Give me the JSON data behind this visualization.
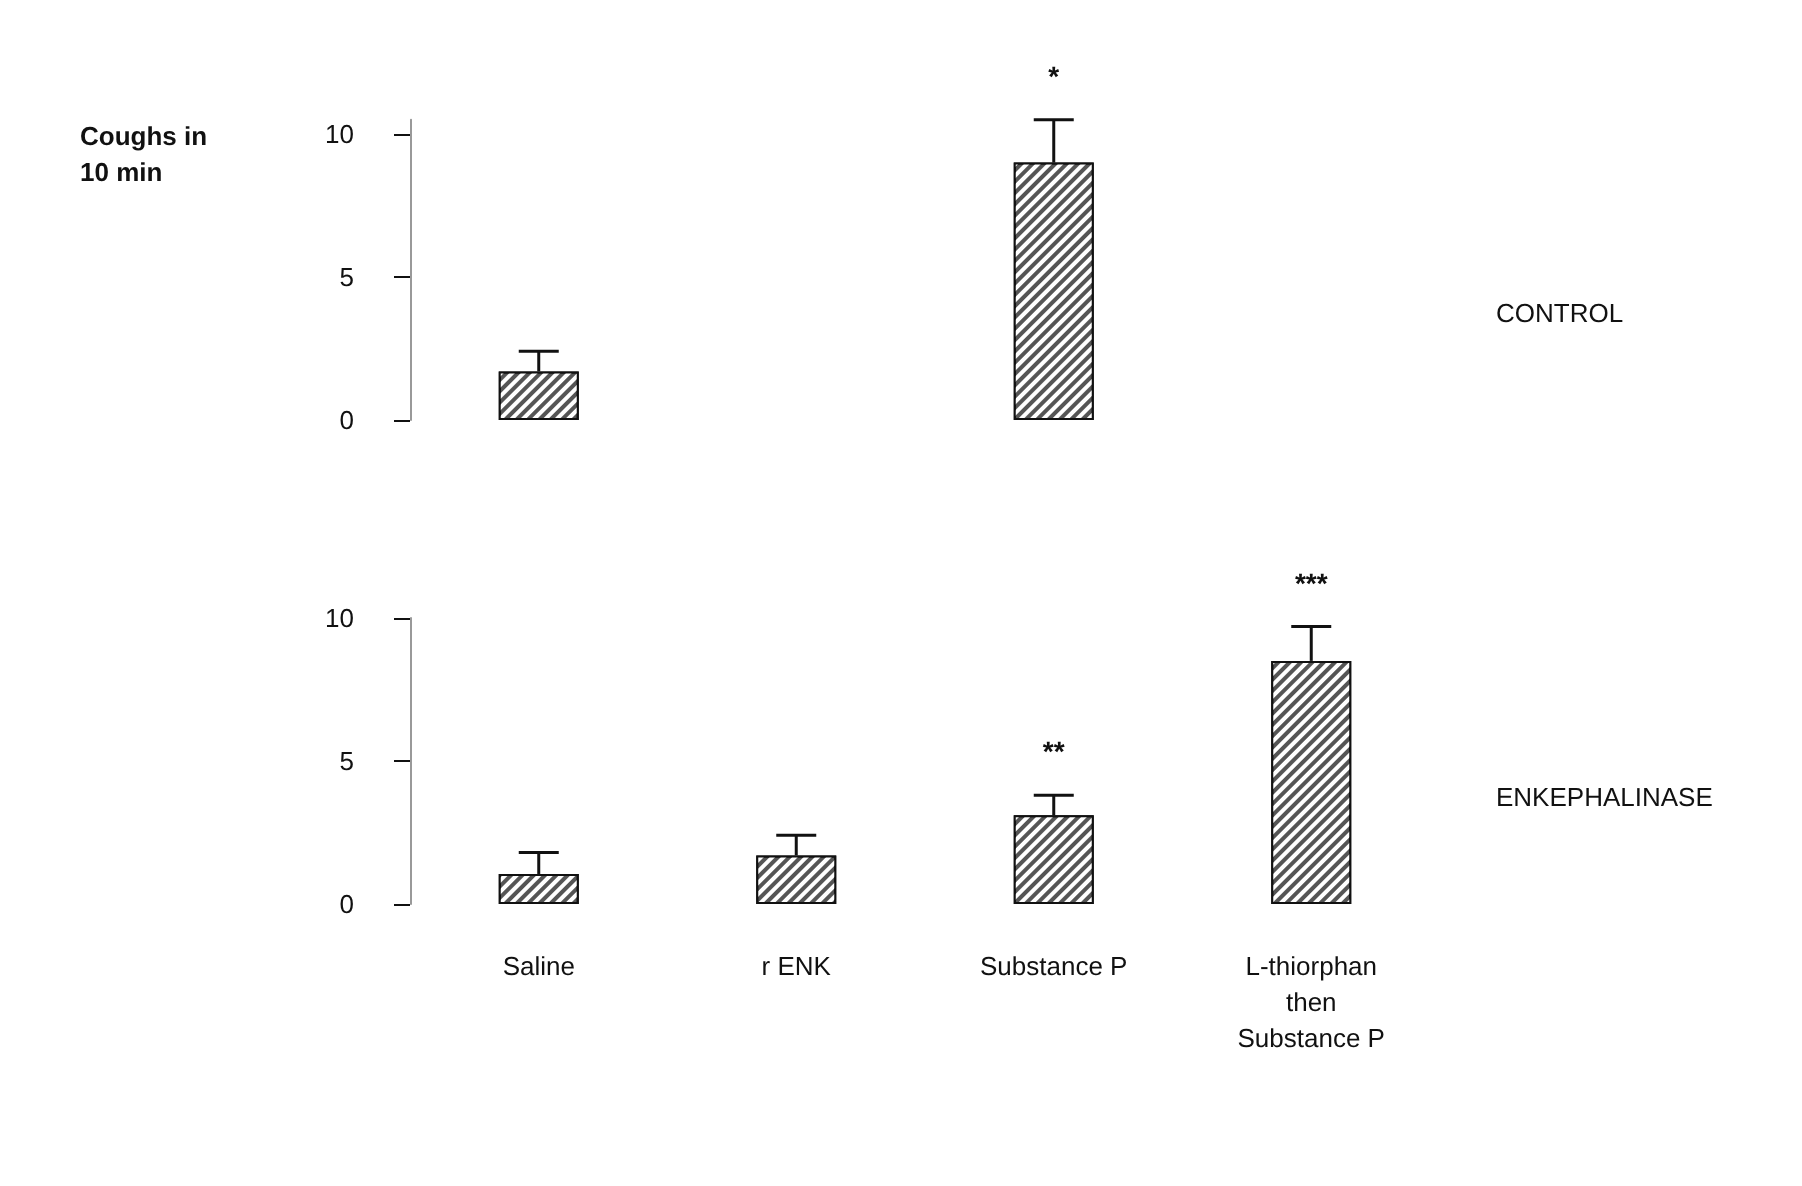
{
  "chart_data": [
    {
      "type": "bar",
      "ylabel": "Coughs in 10 min",
      "categories": [
        "Saline",
        "r ENK",
        "Substance P",
        "L-thiorphan then Substance P"
      ],
      "values": [
        1.7,
        null,
        9.0,
        null
      ],
      "errors": [
        [
          1.7,
          2.4
        ],
        null,
        [
          9.0,
          10.5
        ],
        null
      ],
      "color": "#555555",
      "ylim": [
        0,
        10.5
      ],
      "yticks": [
        0,
        5,
        10
      ],
      "tick_labels": "y",
      "grid": false,
      "annotations": [
        "CONTROL",
        {
          "text": "*",
          "x": "Substance P",
          "y": 10.5
        }
      ]
    },
    {
      "type": "bar",
      "categories": [
        "Saline",
        "r ENK",
        "Substance P",
        "L-thiorphan then Substance P"
      ],
      "values": [
        1.05,
        1.7,
        3.1,
        8.5
      ],
      "errors": [
        [
          1.05,
          1.8
        ],
        [
          1.7,
          2.4
        ],
        [
          3.1,
          3.8
        ],
        [
          8.5,
          9.7
        ]
      ],
      "color": "#555555",
      "ylim": [
        0,
        10
      ],
      "yticks": [
        0,
        5,
        10
      ],
      "grid": false,
      "annotations": [
        "ENKEPHALINASE",
        {
          "text": "**",
          "x": "Substance P",
          "y": 3.8
        },
        {
          "text": "***",
          "x": "L-thiorphan then Substance P",
          "y": 9.7
        }
      ]
    }
  ]
}
